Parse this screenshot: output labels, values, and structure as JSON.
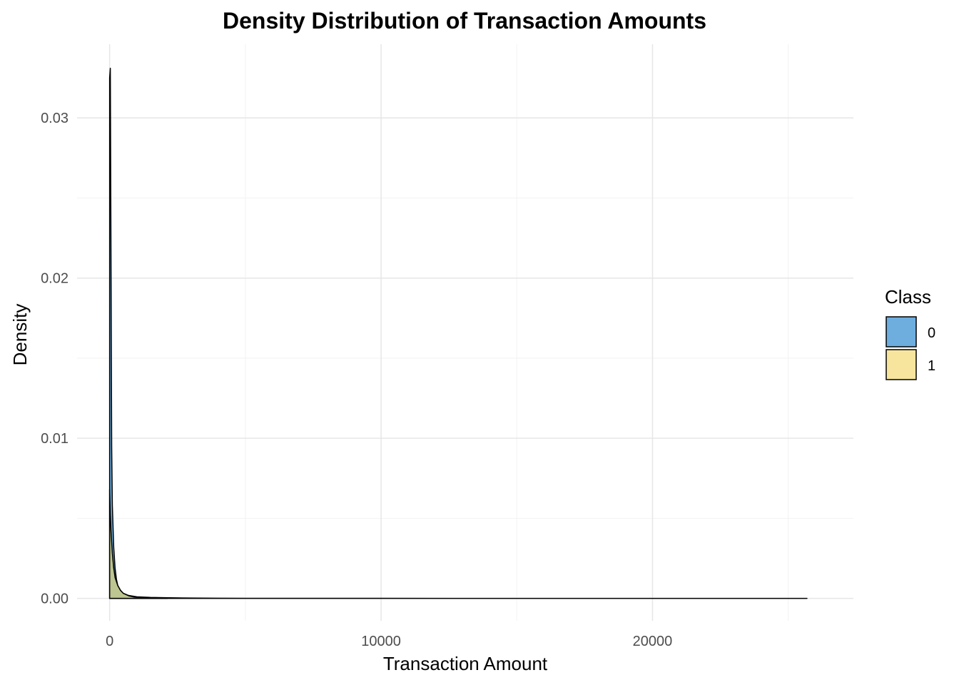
{
  "chart_data": {
    "type": "area",
    "title": "Density Distribution of Transaction Amounts",
    "xlabel": "Transaction Amount",
    "ylabel": "Density",
    "xlim": [
      -1200,
      27400
    ],
    "ylim": [
      -0.0014,
      0.0346
    ],
    "x_ticks": [
      0,
      10000,
      20000
    ],
    "x_tick_labels": [
      "0",
      "10000",
      "20000"
    ],
    "x_minor_ticks": [
      5000,
      15000,
      25000
    ],
    "y_ticks": [
      0,
      0.01,
      0.02,
      0.03
    ],
    "y_tick_labels": [
      "0.00",
      "0.01",
      "0.02",
      "0.03"
    ],
    "y_minor_ticks": [
      0.005,
      0.015,
      0.025
    ],
    "grid": true,
    "legend": {
      "title": "Class",
      "position": "right",
      "entries": [
        "0",
        "1"
      ]
    },
    "series": [
      {
        "name": "0",
        "color": "#66aadd",
        "opacity": 0.95,
        "x": [
          0,
          25,
          50,
          75,
          100,
          150,
          200,
          250,
          300,
          400,
          500,
          700,
          1000,
          1500,
          2000,
          3000,
          4000,
          5000,
          10000,
          15000,
          20000,
          25691
        ],
        "y": [
          0.0325,
          0.0331,
          0.0215,
          0.0095,
          0.0058,
          0.0032,
          0.0019,
          0.0012,
          0.0008,
          0.0005,
          0.00032,
          0.00018,
          0.0001,
          6e-05,
          4e-05,
          2e-05,
          1e-05,
          5e-06,
          1e-06,
          5e-07,
          3e-07,
          1e-07
        ]
      },
      {
        "name": "1",
        "color": "#f2d35e",
        "opacity": 0.6,
        "x": [
          0,
          25,
          50,
          100,
          150,
          200,
          300,
          400,
          500,
          700,
          900,
          1200,
          1600,
          2126
        ],
        "y": [
          0.0068,
          0.0052,
          0.0042,
          0.0028,
          0.0019,
          0.0013,
          0.0008,
          0.0005,
          0.00032,
          0.00016,
          8e-05,
          4e-05,
          2e-05,
          5e-06
        ]
      }
    ]
  }
}
